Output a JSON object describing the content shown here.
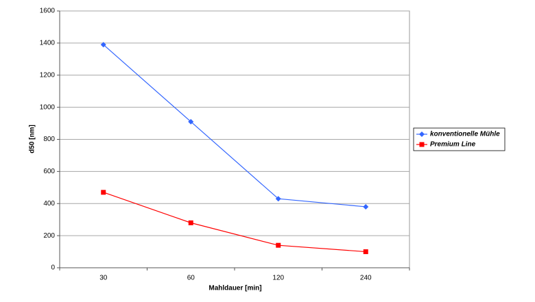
{
  "chart_data": {
    "type": "line",
    "x_label": "Mahldauer [min]",
    "y_label": "d50 [nm]",
    "categories": [
      "30",
      "60",
      "120",
      "240"
    ],
    "series": [
      {
        "name": "konventionelle Mühle",
        "color": "#3366ff",
        "marker": "diamond",
        "values": [
          1390,
          910,
          430,
          380
        ]
      },
      {
        "name": "Premium Line",
        "color": "#ff0000",
        "marker": "square",
        "values": [
          470,
          280,
          140,
          100
        ]
      }
    ],
    "ylim": [
      0,
      1600
    ],
    "yticks": [
      0,
      200,
      400,
      600,
      800,
      1000,
      1200,
      1400,
      1600
    ],
    "grid": true,
    "legend": "right"
  }
}
